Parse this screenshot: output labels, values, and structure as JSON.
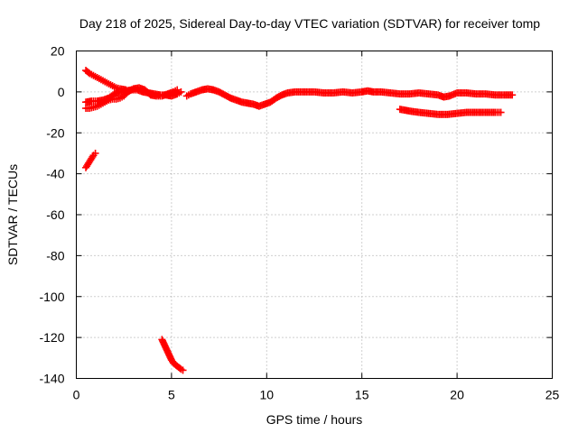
{
  "chart_data": {
    "type": "scatter",
    "title": "Day 218 of 2025, Sidereal Day-to-day VTEC variation (SDTVAR) for receiver tomp",
    "xlabel": "GPS time / hours",
    "ylabel": "SDTVAR / TECUs",
    "xlim": [
      0,
      25
    ],
    "ylim": [
      -140,
      20
    ],
    "x_ticks": [
      "0",
      "5",
      "10",
      "15",
      "20",
      "25"
    ],
    "y_ticks": [
      "20",
      "0",
      "-20",
      "-40",
      "-60",
      "-80",
      "-100",
      "-120",
      "-140"
    ],
    "x_tick_values": [
      0,
      5,
      10,
      15,
      20,
      25
    ],
    "y_tick_values": [
      20,
      0,
      -20,
      -40,
      -60,
      -80,
      -100,
      -120,
      -140
    ],
    "grid": true,
    "marker_color": "#ff0000",
    "series": [
      {
        "name": "arc-early-descending",
        "points": [
          [
            0.5,
            10.5
          ],
          [
            0.7,
            9
          ],
          [
            0.9,
            8
          ],
          [
            1.1,
            7
          ],
          [
            1.3,
            6
          ],
          [
            1.5,
            5
          ],
          [
            1.7,
            4
          ],
          [
            1.9,
            3
          ],
          [
            2.1,
            2
          ],
          [
            2.3,
            1.5
          ],
          [
            2.6,
            1
          ]
        ]
      },
      {
        "name": "arc-early-lower",
        "points": [
          [
            0.5,
            -8
          ],
          [
            0.7,
            -8
          ],
          [
            0.9,
            -7.5
          ],
          [
            1.1,
            -7
          ],
          [
            1.3,
            -6
          ],
          [
            1.5,
            -5
          ],
          [
            1.7,
            -4
          ],
          [
            1.9,
            -3.5
          ],
          [
            2.1,
            -3.5
          ],
          [
            2.3,
            -3
          ],
          [
            2.5,
            -2
          ],
          [
            2.7,
            0
          ],
          [
            3.0,
            1.5
          ],
          [
            3.3,
            2
          ],
          [
            3.6,
            1
          ],
          [
            3.9,
            -1.5
          ],
          [
            4.2,
            -2
          ],
          [
            4.5,
            -2
          ],
          [
            4.8,
            -1
          ],
          [
            5.1,
            0
          ],
          [
            5.3,
            1
          ]
        ]
      },
      {
        "name": "arc-early-upper-band",
        "points": [
          [
            0.5,
            -5
          ],
          [
            0.8,
            -4.5
          ],
          [
            1.1,
            -4.5
          ],
          [
            1.4,
            -4
          ],
          [
            1.7,
            -3
          ],
          [
            2.0,
            -1
          ],
          [
            2.3,
            0
          ],
          [
            2.6,
            0.5
          ],
          [
            2.9,
            1
          ],
          [
            3.2,
            1
          ],
          [
            3.5,
            0
          ],
          [
            3.8,
            -0.5
          ],
          [
            4.1,
            -1
          ],
          [
            4.4,
            -1.5
          ],
          [
            4.7,
            -1.5
          ],
          [
            5.0,
            -2
          ],
          [
            5.3,
            -1
          ],
          [
            5.5,
            0
          ]
        ]
      },
      {
        "name": "arc-main",
        "points": [
          [
            5.8,
            -2
          ],
          [
            6.0,
            -1
          ],
          [
            6.3,
            0
          ],
          [
            6.6,
            1
          ],
          [
            6.9,
            1.5
          ],
          [
            7.2,
            1
          ],
          [
            7.5,
            0
          ],
          [
            7.8,
            -1.5
          ],
          [
            8.1,
            -3
          ],
          [
            8.4,
            -4
          ],
          [
            8.7,
            -5
          ],
          [
            9.0,
            -5.5
          ],
          [
            9.3,
            -6
          ],
          [
            9.6,
            -7
          ],
          [
            9.9,
            -6
          ],
          [
            10.2,
            -5
          ],
          [
            10.5,
            -3
          ],
          [
            10.8,
            -1.5
          ],
          [
            11.1,
            -0.5
          ],
          [
            11.5,
            0
          ],
          [
            12.0,
            0
          ],
          [
            12.5,
            0
          ],
          [
            13.0,
            -0.5
          ],
          [
            13.5,
            -0.5
          ],
          [
            14.0,
            0
          ],
          [
            14.5,
            -0.5
          ],
          [
            15.0,
            0
          ],
          [
            15.3,
            0.5
          ],
          [
            15.6,
            0
          ],
          [
            16.0,
            0
          ],
          [
            16.5,
            -0.5
          ],
          [
            17.0,
            -1
          ],
          [
            17.5,
            -1
          ],
          [
            18.0,
            -0.5
          ],
          [
            18.5,
            -1
          ],
          [
            19.0,
            -1.5
          ],
          [
            19.3,
            -2.5
          ],
          [
            19.6,
            -2
          ],
          [
            20.0,
            -0.5
          ],
          [
            20.5,
            -0.5
          ],
          [
            21.0,
            -1
          ],
          [
            21.5,
            -1
          ],
          [
            22.0,
            -1.5
          ],
          [
            22.5,
            -1.5
          ],
          [
            22.9,
            -1.5
          ]
        ]
      },
      {
        "name": "arc-late-lower",
        "points": [
          [
            17.0,
            -8.5
          ],
          [
            17.3,
            -9
          ],
          [
            17.6,
            -9.5
          ],
          [
            18.0,
            -10
          ],
          [
            18.5,
            -10.5
          ],
          [
            19.0,
            -11
          ],
          [
            19.5,
            -11
          ],
          [
            20.0,
            -10.5
          ],
          [
            20.5,
            -10
          ],
          [
            21.0,
            -10
          ],
          [
            21.5,
            -10
          ],
          [
            22.0,
            -10
          ],
          [
            22.3,
            -10
          ]
        ]
      },
      {
        "name": "arc-short-mid",
        "points": [
          [
            0.5,
            -37
          ],
          [
            0.6,
            -35.5
          ],
          [
            0.7,
            -34
          ],
          [
            0.8,
            -32.5
          ],
          [
            0.9,
            -31
          ],
          [
            1.0,
            -30
          ]
        ]
      },
      {
        "name": "arc-deep",
        "points": [
          [
            4.5,
            -121
          ],
          [
            4.6,
            -123
          ],
          [
            4.7,
            -125
          ],
          [
            4.8,
            -127
          ],
          [
            4.9,
            -129
          ],
          [
            5.0,
            -131
          ],
          [
            5.1,
            -132.5
          ],
          [
            5.3,
            -134
          ],
          [
            5.5,
            -135.5
          ],
          [
            5.6,
            -136
          ]
        ]
      }
    ]
  }
}
